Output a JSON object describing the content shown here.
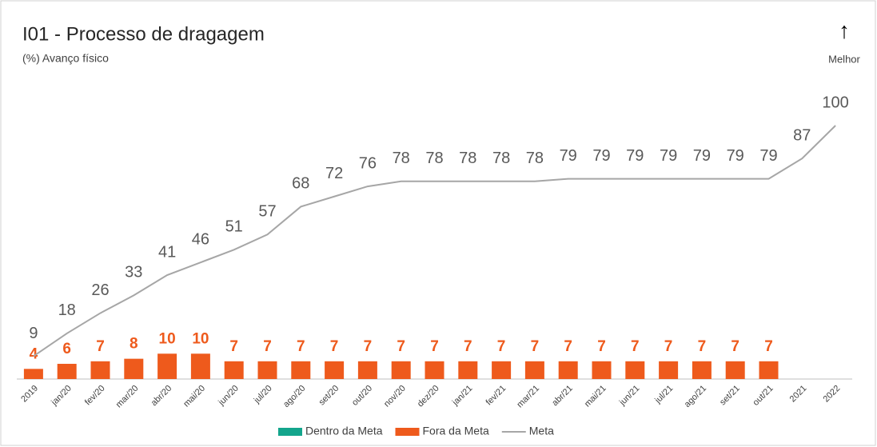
{
  "chart_data": {
    "type": "bar_line",
    "title": "I01 - Processo de dragagem",
    "subtitle": "(%) Avanço físico",
    "direction_arrow": "↑",
    "direction_label": "Melhor",
    "categories": [
      "2019",
      "jan/20",
      "fev/20",
      "mar/20",
      "abr/20",
      "mai/20",
      "jun/20",
      "jul/20",
      "ago/20",
      "set/20",
      "out/20",
      "nov/20",
      "dez/20",
      "jan/21",
      "fev/21",
      "mar/21",
      "abr/21",
      "mai/21",
      "jun/21",
      "jul/21",
      "ago/21",
      "set/21",
      "out/21",
      "2021",
      "2022"
    ],
    "series": [
      {
        "name": "Dentro da Meta",
        "kind": "bar",
        "color": "#13a58c",
        "values": [
          null,
          null,
          null,
          null,
          null,
          null,
          null,
          null,
          null,
          null,
          null,
          null,
          null,
          null,
          null,
          null,
          null,
          null,
          null,
          null,
          null,
          null,
          null,
          null,
          null
        ]
      },
      {
        "name": "Fora da Meta",
        "kind": "bar",
        "color": "#ee5a1c",
        "values": [
          4,
          6,
          7,
          8,
          10,
          10,
          7,
          7,
          7,
          7,
          7,
          7,
          7,
          7,
          7,
          7,
          7,
          7,
          7,
          7,
          7,
          7,
          7,
          null,
          null
        ]
      },
      {
        "name": "Meta",
        "kind": "line",
        "color": "#a6a6a6",
        "values": [
          9,
          18,
          26,
          33,
          41,
          46,
          51,
          57,
          68,
          72,
          76,
          78,
          78,
          78,
          78,
          78,
          79,
          79,
          79,
          79,
          79,
          79,
          79,
          87,
          100
        ]
      }
    ],
    "ylim": [
      0,
      100
    ]
  }
}
